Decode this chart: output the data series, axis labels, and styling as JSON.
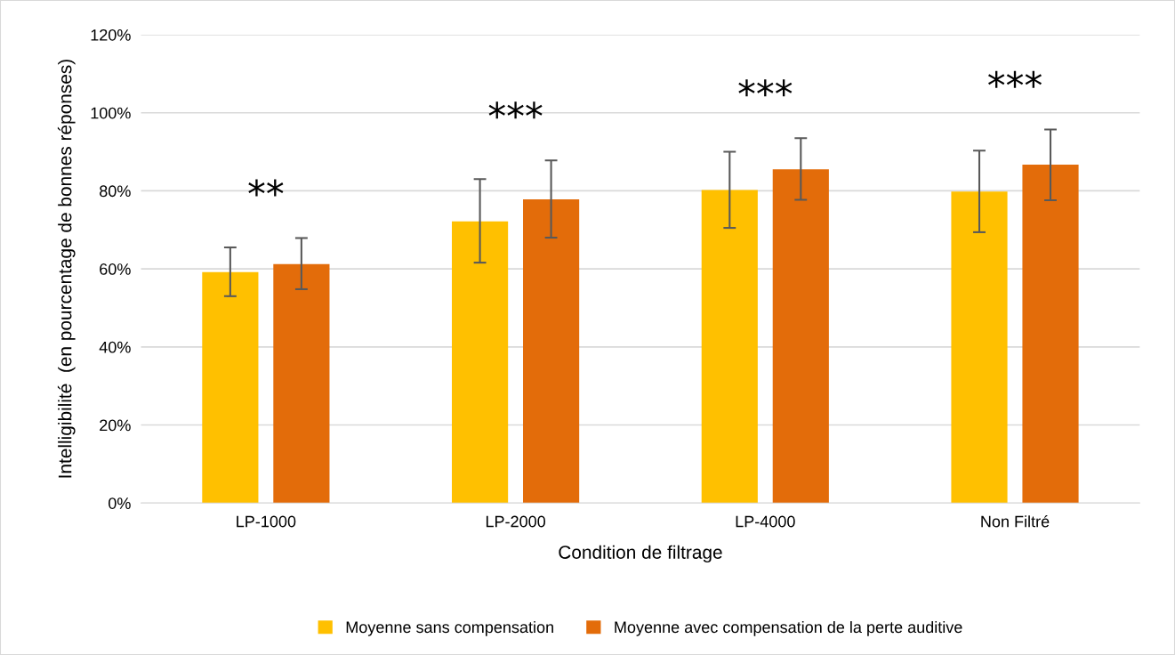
{
  "chart_data": {
    "type": "bar",
    "xlabel": "Condition de filtrage",
    "ylabel": "Intelligibilité  (en pourcentage de bonnes réponses)",
    "categories": [
      "LP-1000",
      "LP-2000",
      "LP-4000",
      "Non Filtré"
    ],
    "series": [
      {
        "name": "Moyenne sans compensation",
        "color": "#ffc000",
        "values": [
          59.2,
          72.2,
          80.2,
          79.8
        ],
        "errors": [
          [
            53.0,
            65.5
          ],
          [
            61.6,
            83.0
          ],
          [
            70.5,
            90.0
          ],
          [
            69.4,
            90.3
          ]
        ]
      },
      {
        "name": "Moyenne avec compensation de la perte auditive",
        "color": "#e36c0a",
        "values": [
          61.2,
          77.8,
          85.5,
          86.7
        ],
        "errors": [
          [
            54.8,
            67.9
          ],
          [
            68.0,
            87.8
          ],
          [
            77.7,
            93.5
          ],
          [
            77.6,
            95.7
          ]
        ]
      }
    ],
    "ylim": [
      0,
      120
    ],
    "yticks": [
      {
        "value": 0,
        "label": "0%"
      },
      {
        "value": 20,
        "label": "20%"
      },
      {
        "value": 40,
        "label": "40%"
      },
      {
        "value": 60,
        "label": "60%"
      },
      {
        "value": 80,
        "label": "80%"
      },
      {
        "value": 100,
        "label": "100%"
      },
      {
        "value": 120,
        "label": "120%"
      }
    ],
    "grid": "y",
    "legend": "bottom",
    "annotations": [
      "**",
      "***",
      "***",
      "***"
    ]
  }
}
